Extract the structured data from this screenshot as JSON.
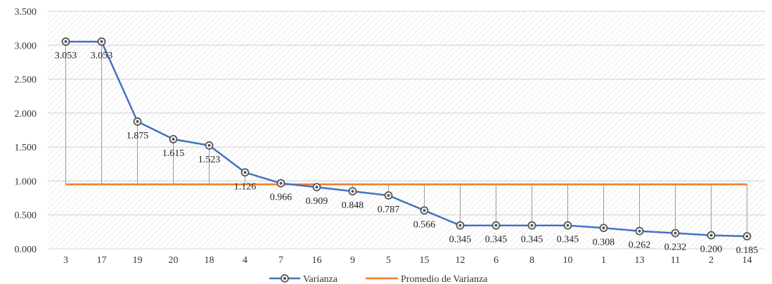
{
  "chart_data": {
    "type": "line",
    "categories": [
      "3",
      "17",
      "19",
      "20",
      "18",
      "4",
      "7",
      "16",
      "9",
      "5",
      "15",
      "12",
      "6",
      "8",
      "10",
      "1",
      "13",
      "11",
      "2",
      "14"
    ],
    "series": [
      {
        "name": "Varianza",
        "values": [
          3.053,
          3.053,
          1.875,
          1.615,
          1.523,
          1.126,
          0.966,
          0.909,
          0.848,
          0.787,
          0.566,
          0.345,
          0.345,
          0.345,
          0.345,
          0.308,
          0.262,
          0.232,
          0.2,
          0.185
        ],
        "data_labels": [
          "3.053",
          "3.053",
          "1.875",
          "1.615",
          "1.523",
          "1.126",
          "0.966",
          "0.909",
          "0.848",
          "0.787",
          "0.566",
          "0.345",
          "0.345",
          "0.345",
          "0.345",
          "0.308",
          "0.262",
          "0.232",
          "0.200",
          "0.185"
        ],
        "color": "#4472C4",
        "marker": "circle-with-dot"
      },
      {
        "name": "Promedio de Varianza",
        "value": 0.95,
        "color": "#ED7D31"
      }
    ],
    "y_ticks": [
      "0.000",
      "0.500",
      "1.000",
      "1.500",
      "2.000",
      "2.500",
      "3.000",
      "3.500"
    ],
    "ylim": [
      0,
      3.5
    ],
    "drop_lines": true,
    "background": "diagonal-hatch",
    "legend_position": "bottom-center"
  }
}
